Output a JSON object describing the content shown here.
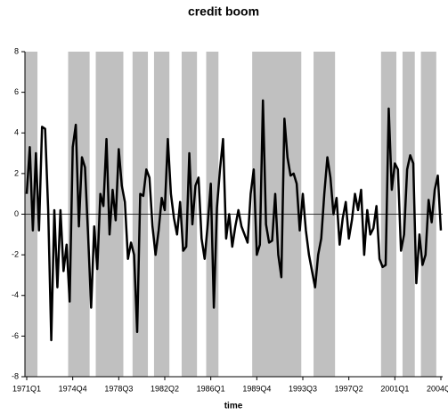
{
  "chart_data": {
    "type": "line",
    "title": "credit boom",
    "x_label": "time",
    "categories": [
      "1971Q1",
      null,
      null,
      null,
      null,
      null,
      null,
      null,
      null,
      null,
      null,
      null,
      null,
      null,
      null,
      "1974Q4",
      null,
      null,
      null,
      null,
      null,
      null,
      null,
      null,
      null,
      null,
      null,
      null,
      null,
      null,
      "1978Q3",
      null,
      null,
      null,
      null,
      null,
      null,
      null,
      null,
      null,
      null,
      null,
      null,
      null,
      null,
      "1982Q2",
      null,
      null,
      null,
      null,
      null,
      null,
      null,
      null,
      null,
      null,
      null,
      null,
      null,
      null,
      "1986Q1",
      null,
      null,
      null,
      null,
      null,
      null,
      null,
      null,
      null,
      null,
      null,
      null,
      null,
      null,
      "1989Q4",
      null,
      null,
      null,
      null,
      null,
      null,
      null,
      null,
      null,
      null,
      null,
      null,
      null,
      null,
      "1993Q3",
      null,
      null,
      null,
      null,
      null,
      null,
      null,
      null,
      null,
      null,
      null,
      null,
      null,
      null,
      "1997Q2",
      null,
      null,
      null,
      null,
      null,
      null,
      null,
      null,
      null,
      null,
      null,
      null,
      null,
      null,
      "2001Q1",
      null,
      null,
      null,
      null,
      null,
      null,
      null,
      null,
      null,
      null,
      null,
      null,
      null,
      null,
      "2004Q4"
    ],
    "values": [
      1.0,
      3.3,
      -0.8,
      3.0,
      -0.8,
      4.3,
      4.2,
      0.2,
      -6.2,
      0.2,
      -3.6,
      0.2,
      -2.8,
      -1.5,
      -4.3,
      3.3,
      4.4,
      -0.6,
      2.8,
      2.3,
      -1.0,
      -4.6,
      -0.6,
      -2.7,
      1.0,
      0.4,
      3.7,
      -1.0,
      1.2,
      -0.3,
      3.2,
      1.4,
      0.6,
      -2.2,
      -1.4,
      -2.0,
      -5.8,
      1.0,
      0.9,
      2.2,
      1.8,
      -0.6,
      -2.0,
      -0.8,
      0.8,
      0.2,
      3.7,
      1.0,
      -0.2,
      -1.0,
      0.6,
      -1.8,
      -1.6,
      3.0,
      -0.5,
      1.4,
      1.8,
      -1.2,
      -2.2,
      -0.5,
      1.5,
      -4.6,
      0.3,
      2.2,
      3.7,
      -1.2,
      0.0,
      -1.6,
      -0.6,
      0.2,
      -0.6,
      -1.0,
      -1.4,
      1.0,
      2.2,
      -2.0,
      -1.5,
      5.6,
      -0.5,
      -1.4,
      -1.3,
      1.0,
      -2.0,
      -3.1,
      4.7,
      2.8,
      1.9,
      2.0,
      1.5,
      -0.8,
      1.0,
      -0.8,
      -2.0,
      -2.8,
      -3.6,
      -2.0,
      -1.2,
      1.0,
      2.8,
      1.8,
      0.0,
      0.8,
      -1.5,
      -0.2,
      0.6,
      -1.2,
      -0.3,
      1.0,
      0.2,
      1.2,
      -2.0,
      0.2,
      -1.0,
      -0.7,
      0.4,
      -2.2,
      -2.6,
      -2.5,
      5.2,
      1.2,
      2.5,
      2.2,
      -1.8,
      -1.0,
      2.2,
      2.9,
      2.5,
      -3.4,
      -1.0,
      -2.5,
      -2.0,
      0.7,
      -0.4,
      1.2,
      1.9,
      -0.8
    ],
    "color": "#000000",
    "shade_color": "#c0c0c0",
    "shaded": [
      [
        0,
        3
      ],
      [
        14,
        20
      ],
      [
        23,
        31
      ],
      [
        35,
        39
      ],
      [
        42,
        46
      ],
      [
        51,
        55
      ],
      [
        59,
        62
      ],
      [
        74,
        89
      ],
      [
        94,
        100
      ],
      [
        116,
        120
      ],
      [
        123,
        126
      ],
      [
        129,
        133
      ]
    ],
    "ylim": [
      -8,
      8
    ],
    "yticks": [
      -8,
      -6,
      -4,
      -2,
      0,
      2,
      4,
      6,
      8
    ],
    "zero_line": true
  }
}
